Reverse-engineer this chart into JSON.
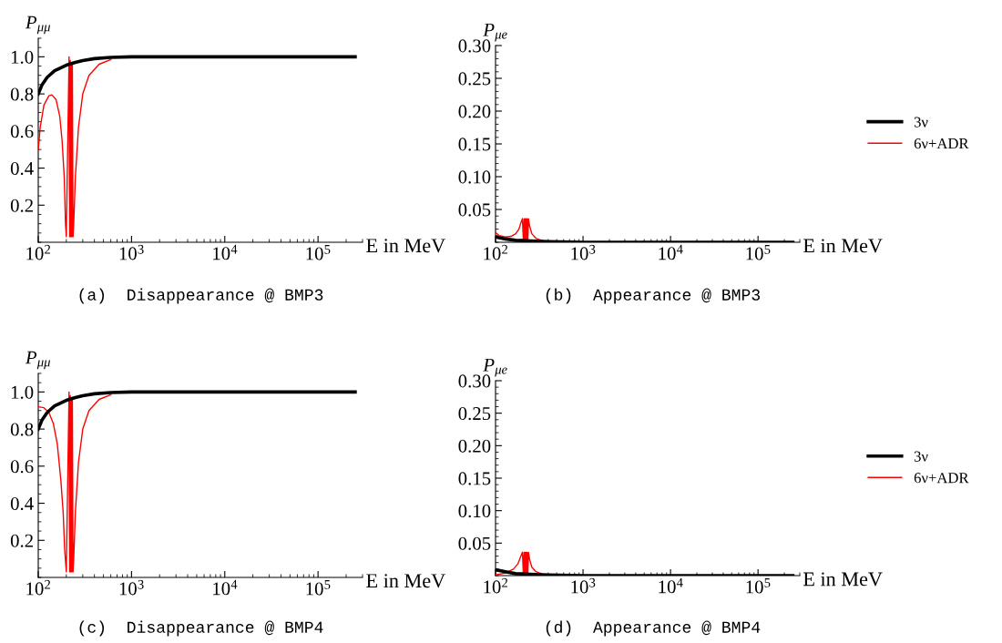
{
  "chart_data": [
    {
      "type": "line",
      "ylabel": "P$_{μμ}$",
      "xlabel": "E in MeV",
      "log": "x",
      "xlim": [
        100,
        300000
      ],
      "xticks": [
        {
          "value": 100,
          "label": "10$^{2}$"
        },
        {
          "value": 1000,
          "label": "10$^{3}$"
        },
        {
          "value": 10000,
          "label": "10$^{4}$"
        },
        {
          "value": 100000,
          "label": "10$^{5}$"
        }
      ],
      "ylim": [
        0,
        1.1
      ],
      "yticks": [
        0.2,
        0.4,
        0.6,
        0.8,
        {
          "value": 1,
          "label": "1.0"
        }
      ],
      "grid": false,
      "legend": false,
      "annotations": [
        "(a)  Disappearance @ BMP3"
      ],
      "series": [
        {
          "color": "#000000",
          "x": [
            100,
            110,
            125,
            150,
            200,
            250,
            300,
            400,
            600,
            1000,
            250000
          ],
          "values": [
            0.8,
            0.85,
            0.89,
            0.925,
            0.955,
            0.97,
            0.98,
            0.99,
            0.997,
            1.0,
            1.0
          ]
        },
        {
          "color": "#ff0000",
          "x": [
            100,
            105,
            115,
            130,
            140,
            155,
            170,
            180,
            190,
            196,
            200,
            214,
            217,
            220,
            223,
            226,
            229,
            232,
            236,
            240,
            250,
            270,
            300,
            350,
            450,
            600
          ],
          "values": [
            0.5,
            0.62,
            0.74,
            0.79,
            0.795,
            0.77,
            0.68,
            0.55,
            0.35,
            0.1,
            0.03,
            1.0,
            0.03,
            0.98,
            0.03,
            0.97,
            0.03,
            0.97,
            0.03,
            0.1,
            0.35,
            0.62,
            0.8,
            0.9,
            0.96,
            0.985
          ]
        }
      ]
    },
    {
      "type": "line",
      "ylabel": "P$_{μe}$",
      "xlabel": "E in MeV",
      "log": "x",
      "xlim": [
        100,
        300000
      ],
      "xticks": [
        {
          "value": 100,
          "label": "10$^{2}$"
        },
        {
          "value": 1000,
          "label": "10$^{3}$"
        },
        {
          "value": 10000,
          "label": "10$^{4}$"
        },
        {
          "value": 100000,
          "label": "10$^{5}$"
        }
      ],
      "ylim": [
        0,
        0.3
      ],
      "yticks": [
        0.05,
        {
          "value": 0.1,
          "label": "0.10"
        },
        0.15,
        {
          "value": 0.2,
          "label": "0.20"
        },
        0.25,
        {
          "value": 0.3,
          "label": "0.30"
        }
      ],
      "grid": false,
      "legend": "right",
      "annotations": [
        "(b)  Appearance @ BMP3"
      ],
      "series": [
        {
          "name": "3ν",
          "color": "#000000",
          "x": [
            100,
            130,
            170,
            250,
            400,
            1000,
            250000
          ],
          "values": [
            0.008,
            0.005,
            0.003,
            0.002,
            0.001,
            0,
            0
          ]
        },
        {
          "name": "6ν+ADR",
          "color": "#ff0000",
          "x": [
            100,
            110,
            130,
            150,
            170,
            185,
            195,
            203,
            208,
            212,
            215,
            218,
            221,
            224,
            227,
            230,
            234,
            238,
            245,
            260,
            290,
            350
          ],
          "values": [
            0.015,
            0.01,
            0.008,
            0.009,
            0.013,
            0.02,
            0.03,
            0.036,
            0.002,
            0.036,
            0.002,
            0.036,
            0.002,
            0.036,
            0.002,
            0.036,
            0.002,
            0.036,
            0.025,
            0.013,
            0.006,
            0.002
          ]
        }
      ]
    },
    {
      "type": "line",
      "ylabel": "P$_{μμ}$",
      "xlabel": "E in MeV",
      "log": "x",
      "xlim": [
        100,
        300000
      ],
      "xticks": [
        {
          "value": 100,
          "label": "10$^{2}$"
        },
        {
          "value": 1000,
          "label": "10$^{3}$"
        },
        {
          "value": 10000,
          "label": "10$^{4}$"
        },
        {
          "value": 100000,
          "label": "10$^{5}$"
        }
      ],
      "ylim": [
        0,
        1.1
      ],
      "yticks": [
        0.2,
        0.4,
        0.6,
        0.8,
        {
          "value": 1,
          "label": "1.0"
        }
      ],
      "grid": false,
      "legend": false,
      "annotations": [
        "(c)  Disappearance @ BMP4"
      ],
      "series": [
        {
          "color": "#000000",
          "x": [
            100,
            110,
            125,
            150,
            200,
            250,
            300,
            400,
            600,
            1000,
            250000
          ],
          "values": [
            0.8,
            0.85,
            0.89,
            0.925,
            0.955,
            0.97,
            0.98,
            0.99,
            0.997,
            1.0,
            1.0
          ]
        },
        {
          "color": "#ff0000",
          "x": [
            100,
            115,
            130,
            145,
            160,
            175,
            185,
            192,
            200,
            214,
            217,
            220,
            223,
            226,
            229,
            232,
            236,
            240,
            250,
            270,
            300,
            350,
            450,
            600
          ],
          "values": [
            0.92,
            0.915,
            0.89,
            0.83,
            0.72,
            0.52,
            0.35,
            0.15,
            0.03,
            1.0,
            0.03,
            0.98,
            0.03,
            0.97,
            0.03,
            0.97,
            0.03,
            0.1,
            0.35,
            0.62,
            0.8,
            0.9,
            0.96,
            0.985
          ]
        }
      ]
    },
    {
      "type": "line",
      "ylabel": "P$_{μe}$",
      "xlabel": "E in MeV",
      "log": "x",
      "xlim": [
        100,
        300000
      ],
      "xticks": [
        {
          "value": 100,
          "label": "10$^{2}$"
        },
        {
          "value": 1000,
          "label": "10$^{3}$"
        },
        {
          "value": 10000,
          "label": "10$^{4}$"
        },
        {
          "value": 100000,
          "label": "10$^{5}$"
        }
      ],
      "ylim": [
        0,
        0.3
      ],
      "yticks": [
        0.05,
        {
          "value": 0.1,
          "label": "0.10"
        },
        0.15,
        {
          "value": 0.2,
          "label": "0.20"
        },
        0.25,
        {
          "value": 0.3,
          "label": "0.30"
        }
      ],
      "grid": false,
      "legend": "right",
      "annotations": [
        "(d)  Appearance @ BMP4"
      ],
      "series": [
        {
          "name": "3ν",
          "color": "#000000",
          "x": [
            100,
            130,
            170,
            250,
            400,
            1000,
            250000
          ],
          "values": [
            0.009,
            0.006,
            0.003,
            0.002,
            0.001,
            0,
            0
          ]
        },
        {
          "name": "6ν+ADR",
          "color": "#ff0000",
          "x": [
            100,
            130,
            160,
            180,
            195,
            203,
            208,
            212,
            215,
            218,
            221,
            224,
            227,
            230,
            234,
            238,
            245,
            260,
            290,
            350
          ],
          "values": [
            0.001,
            0.004,
            0.01,
            0.018,
            0.03,
            0.036,
            0.002,
            0.036,
            0.002,
            0.036,
            0.002,
            0.036,
            0.002,
            0.036,
            0.002,
            0.036,
            0.025,
            0.013,
            0.006,
            0.002
          ]
        }
      ]
    }
  ]
}
